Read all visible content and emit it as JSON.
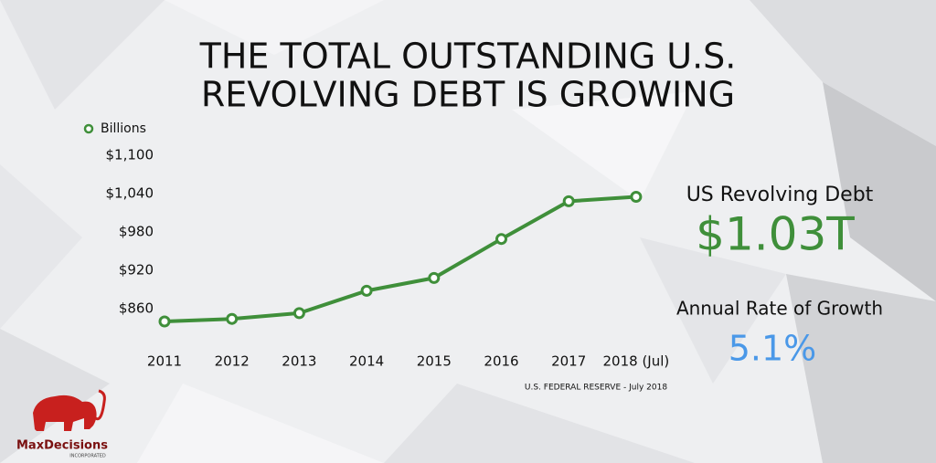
{
  "chart_data": {
    "type": "line",
    "title": [
      "THE TOTAL OUTSTANDING U.S.",
      "REVOLVING DEBT IS GROWING"
    ],
    "categories": [
      "2011",
      "2012",
      "2013",
      "2014",
      "2015",
      "2016",
      "2017",
      "2018 (Jul)"
    ],
    "series": [
      {
        "name": "Billions",
        "color": "#3f8f3a",
        "values": [
          840,
          844,
          853,
          888,
          908,
          969,
          1028,
          1035
        ]
      }
    ],
    "ylim": [
      820,
      1100
    ],
    "yticks": [
      {
        "value": 860,
        "label": "$860"
      },
      {
        "value": 920,
        "label": "$920"
      },
      {
        "value": 980,
        "label": "$980"
      },
      {
        "value": 1040,
        "label": "$1,040"
      },
      {
        "value": 1100,
        "label": "$1,100"
      }
    ],
    "grid": false,
    "legend": "top-left",
    "source": "U.S. FEDERAL RESERVE - July 2018"
  },
  "side_panel": {
    "debt_label": "US Revolving Debt",
    "debt_value": "$1.03T",
    "growth_label": "Annual Rate of Growth",
    "growth_value": "5.1%"
  },
  "logo": {
    "name": "MaxDecisions",
    "tagline": "INCORPORATED"
  }
}
